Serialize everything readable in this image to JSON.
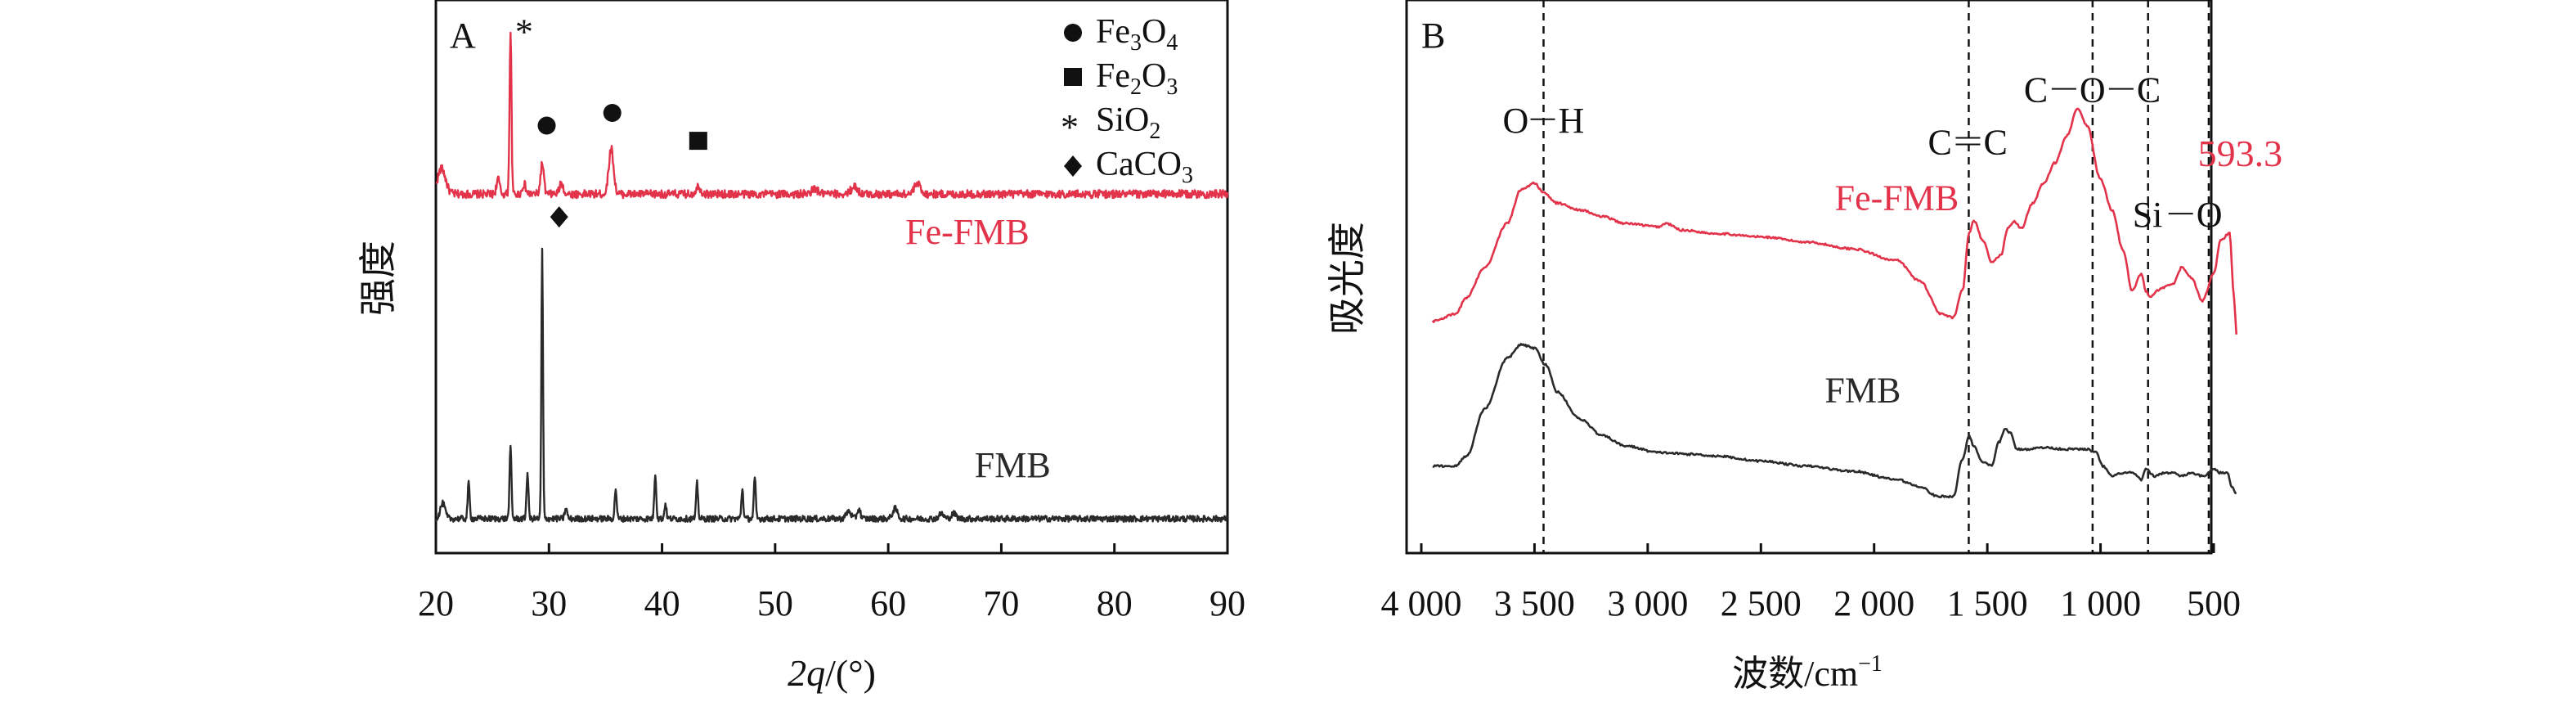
{
  "colors": {
    "fe_fmb": "#e2334a",
    "fmb": "#2a2a2a",
    "axis": "#111111",
    "background": "#ffffff"
  },
  "chart_data": [
    {
      "panel": "A",
      "type": "line",
      "title": "",
      "xlabel_var": "2q",
      "xlabel_unit": "/(°)",
      "ylabel": "强度",
      "xlim": [
        20,
        90
      ],
      "xticks": [
        20,
        30,
        40,
        50,
        60,
        70,
        80,
        90
      ],
      "yticks_shown": false,
      "grid": false,
      "series": [
        {
          "name": "Fe-FMB",
          "baseline": 0.64,
          "noise": 0.008,
          "peaks": [
            [
              20.5,
              0.05,
              0.5
            ],
            [
              25.5,
              0.03,
              0.2
            ],
            [
              26.6,
              0.32,
              0.12
            ],
            [
              27.8,
              0.02,
              0.2
            ],
            [
              29.4,
              0.06,
              0.2
            ],
            [
              31.1,
              0.02,
              0.25
            ],
            [
              35.5,
              0.09,
              0.3
            ],
            [
              43.2,
              0.015,
              0.3
            ],
            [
              53.5,
              0.01,
              0.4
            ],
            [
              57.0,
              0.015,
              0.4
            ],
            [
              62.6,
              0.02,
              0.4
            ]
          ],
          "label_x": 67
        },
        {
          "name": "FMB",
          "baseline": 0.0,
          "noise": 0.006,
          "peaks": [
            [
              20.6,
              0.03,
              0.3
            ],
            [
              22.9,
              0.07,
              0.12
            ],
            [
              26.6,
              0.14,
              0.12
            ],
            [
              28.1,
              0.09,
              0.12
            ],
            [
              29.4,
              0.53,
              0.1
            ],
            [
              31.5,
              0.02,
              0.15
            ],
            [
              35.9,
              0.06,
              0.12
            ],
            [
              39.4,
              0.09,
              0.12
            ],
            [
              40.3,
              0.03,
              0.12
            ],
            [
              43.1,
              0.07,
              0.12
            ],
            [
              47.1,
              0.06,
              0.12
            ],
            [
              48.2,
              0.08,
              0.12
            ],
            [
              56.5,
              0.015,
              0.3
            ],
            [
              57.4,
              0.02,
              0.2
            ],
            [
              60.6,
              0.02,
              0.3
            ],
            [
              64.7,
              0.01,
              0.3
            ],
            [
              65.8,
              0.01,
              0.3
            ]
          ],
          "label_x": 71
        }
      ],
      "markers": [
        {
          "symbol": "star",
          "x": 27.8,
          "y": 0.985,
          "series": "Fe-FMB"
        },
        {
          "symbol": "circle",
          "x": 29.8,
          "y": 0.775,
          "series": "Fe-FMB"
        },
        {
          "symbol": "circle",
          "x": 35.6,
          "y": 0.8,
          "series": "Fe-FMB"
        },
        {
          "symbol": "square",
          "x": 43.2,
          "y": 0.745,
          "series": "Fe-FMB"
        },
        {
          "symbol": "diamond",
          "x": 30.9,
          "y": 0.595,
          "series": "FMB"
        }
      ],
      "legend": [
        {
          "symbol": "circle",
          "name": "Fe",
          "sub1": "3",
          "mid": "O",
          "sub2": "4"
        },
        {
          "symbol": "square",
          "name": "Fe",
          "sub1": "2",
          "mid": "O",
          "sub2": "3"
        },
        {
          "symbol": "star",
          "name": "SiO",
          "sub1": "2",
          "mid": "",
          "sub2": ""
        },
        {
          "symbol": "diamond",
          "name": "CaCO",
          "sub1": "3",
          "mid": "",
          "sub2": ""
        }
      ],
      "legend_location": "top-right"
    },
    {
      "panel": "B",
      "type": "line",
      "title": "",
      "xlabel_text": "波数/cm",
      "xlabel_sup": "−1",
      "ylabel": "吸光度",
      "xlim": [
        4000,
        400
      ],
      "xticks": [
        4000,
        3500,
        3000,
        2500,
        2000,
        1500,
        1000,
        500
      ],
      "xtick_labels": [
        "4 000",
        "3 500",
        "3 000",
        "2 500",
        "2 000",
        "1 500",
        "1 000",
        "500"
      ],
      "yticks_shown": false,
      "grid": false,
      "series": [
        {
          "name": "Fe-FMB",
          "points": [
            [
              3950,
              0.46
            ],
            [
              3850,
              0.48
            ],
            [
              3800,
              0.53
            ],
            [
              3720,
              0.62
            ],
            [
              3620,
              0.75
            ],
            [
              3560,
              0.85
            ],
            [
              3500,
              0.87
            ],
            [
              3460,
              0.84
            ],
            [
              3400,
              0.81
            ],
            [
              3300,
              0.79
            ],
            [
              3200,
              0.77
            ],
            [
              3100,
              0.75
            ],
            [
              2950,
              0.74
            ],
            [
              2920,
              0.75
            ],
            [
              2850,
              0.73
            ],
            [
              2700,
              0.72
            ],
            [
              2500,
              0.71
            ],
            [
              2300,
              0.695
            ],
            [
              2100,
              0.675
            ],
            [
              1900,
              0.64
            ],
            [
              1800,
              0.58
            ],
            [
              1700,
              0.48
            ],
            [
              1650,
              0.47
            ],
            [
              1610,
              0.55
            ],
            [
              1580,
              0.72
            ],
            [
              1560,
              0.76
            ],
            [
              1520,
              0.7
            ],
            [
              1480,
              0.635
            ],
            [
              1440,
              0.655
            ],
            [
              1410,
              0.735
            ],
            [
              1380,
              0.755
            ],
            [
              1350,
              0.735
            ],
            [
              1300,
              0.81
            ],
            [
              1250,
              0.87
            ],
            [
              1200,
              0.93
            ],
            [
              1150,
              1.01
            ],
            [
              1100,
              1.09
            ],
            [
              1060,
              1.04
            ],
            [
              1000,
              0.88
            ],
            [
              950,
              0.79
            ],
            [
              900,
              0.67
            ],
            [
              860,
              0.55
            ],
            [
              820,
              0.6
            ],
            [
              800,
              0.55
            ],
            [
              780,
              0.53
            ],
            [
              750,
              0.55
            ],
            [
              720,
              0.56
            ],
            [
              680,
              0.57
            ],
            [
              640,
              0.62
            ],
            [
              600,
              0.59
            ],
            [
              550,
              0.52
            ],
            [
              500,
              0.6
            ],
            [
              470,
              0.7
            ],
            [
              430,
              0.72
            ],
            [
              410,
              0.53
            ],
            [
              400,
              0.42
            ]
          ],
          "label_x": 1900,
          "label_y": 0.79
        },
        {
          "name": "FMB",
          "points": [
            [
              3950,
              0.03
            ],
            [
              3850,
              0.03
            ],
            [
              3800,
              0.06
            ],
            [
              3720,
              0.2
            ],
            [
              3620,
              0.35
            ],
            [
              3560,
              0.39
            ],
            [
              3500,
              0.38
            ],
            [
              3450,
              0.33
            ],
            [
              3400,
              0.25
            ],
            [
              3300,
              0.17
            ],
            [
              3200,
              0.12
            ],
            [
              3100,
              0.09
            ],
            [
              2950,
              0.07
            ],
            [
              2800,
              0.065
            ],
            [
              2700,
              0.06
            ],
            [
              2500,
              0.045
            ],
            [
              2300,
              0.03
            ],
            [
              2100,
              0.015
            ],
            [
              1900,
              -0.01
            ],
            [
              1800,
              -0.03
            ],
            [
              1720,
              -0.06
            ],
            [
              1650,
              -0.06
            ],
            [
              1610,
              0.05
            ],
            [
              1580,
              0.12
            ],
            [
              1560,
              0.09
            ],
            [
              1520,
              0.04
            ],
            [
              1480,
              0.03
            ],
            [
              1450,
              0.1
            ],
            [
              1420,
              0.14
            ],
            [
              1400,
              0.13
            ],
            [
              1370,
              0.08
            ],
            [
              1330,
              0.08
            ],
            [
              1250,
              0.085
            ],
            [
              1150,
              0.08
            ],
            [
              1060,
              0.08
            ],
            [
              1020,
              0.07
            ],
            [
              990,
              0.03
            ],
            [
              950,
              0.0
            ],
            [
              900,
              0.01
            ],
            [
              860,
              0.01
            ],
            [
              820,
              -0.01
            ],
            [
              800,
              0.02
            ],
            [
              760,
              0.0
            ],
            [
              720,
              0.01
            ],
            [
              680,
              0.01
            ],
            [
              640,
              0.0
            ],
            [
              600,
              0.01
            ],
            [
              550,
              0.0
            ],
            [
              500,
              0.02
            ],
            [
              470,
              0.01
            ],
            [
              440,
              0.01
            ],
            [
              420,
              -0.03
            ],
            [
              400,
              -0.05
            ]
          ],
          "label_x": 2050,
          "label_y": 0.22
        }
      ],
      "reference_lines": [
        3460,
        1582,
        1035,
        790,
        522
      ],
      "annotations": [
        {
          "text_a": "O",
          "text_b": "H",
          "x": 3460,
          "y": 1.02,
          "style": "single",
          "color": "#111111"
        },
        {
          "text_a": "C",
          "text_b": "C",
          "x": 1582,
          "y": 0.955,
          "style": "double",
          "color": "#111111"
        },
        {
          "text_a": "C",
          "text_b": "O",
          "text_c": "C",
          "x": 1035,
          "y": 1.11,
          "style": "triple",
          "color": "#111111"
        },
        {
          "text_a": "Si",
          "text_b": "O",
          "x": 660,
          "y": 0.74,
          "style": "single",
          "color": "#111111"
        }
      ],
      "value_label": {
        "text": "593.3",
        "x": 570,
        "y": 0.92,
        "color": "#e2334a"
      }
    }
  ]
}
